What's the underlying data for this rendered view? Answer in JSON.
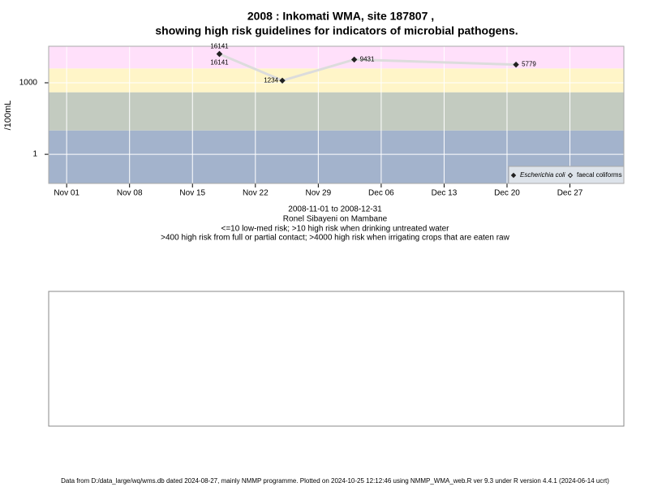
{
  "chart_data": {
    "type": "line",
    "title": "2008 : Inkomati WMA, site 187807 ,",
    "subtitle": "showing high risk guidelines for indicators of microbial pathogens.",
    "ylabel": "/100mL",
    "log_y": true,
    "grid": true,
    "legend": "bottom-right",
    "xlim": [
      "2008-10-30",
      "2009-01-02"
    ],
    "xticks": [
      {
        "value": "2008-11-01",
        "label": "Nov 01"
      },
      {
        "value": "2008-11-08",
        "label": "Nov 08"
      },
      {
        "value": "2008-11-15",
        "label": "Nov 15"
      },
      {
        "value": "2008-11-22",
        "label": "Nov 22"
      },
      {
        "value": "2008-11-29",
        "label": "Nov 29"
      },
      {
        "value": "2008-12-06",
        "label": "Dec 06"
      },
      {
        "value": "2008-12-13",
        "label": "Dec 13"
      },
      {
        "value": "2008-12-20",
        "label": "Dec 20"
      },
      {
        "value": "2008-12-27",
        "label": "Dec 27"
      }
    ],
    "ylim": [
      0.06,
      34000
    ],
    "yticks": [
      1,
      1000
    ],
    "bands": [
      {
        "upper": 10,
        "color": "#a3b3cc"
      },
      {
        "upper": 400,
        "color": "#c3cbc0"
      },
      {
        "upper": 4000,
        "color": "#fff5c8"
      },
      {
        "color": "#ffe0fa"
      }
    ],
    "series": [
      {
        "name": "Escherichia coli",
        "color": "#222222",
        "line_color": "#dcdcdc",
        "x": [
          "2008-11-18",
          "2008-11-25",
          "2008-12-03",
          "2008-12-21"
        ],
        "values": [
          16141,
          1234,
          9431,
          5779
        ]
      },
      {
        "name": "faecal coliforms",
        "color": "#222222",
        "x": [
          "2008-11-18"
        ],
        "values": [
          16141
        ]
      }
    ],
    "notes": [
      "2008-11-01 to 2008-12-31",
      "Ronel Sibayeni on Mambane",
      "<=10 low-med risk; >10 high risk when drinking untreated water",
      ">400 high risk from full or partial contact; >4000 high risk when irrigating crops that are eaten raw"
    ],
    "footer": "Data from D:/data_large/wq/wms.db dated 2024-08-27, mainly NMMP programme. Plotted on 2024-10-25 12:12:46 using NMMP_WMA_web.R ver 9.3 under R version 4.4.1 (2024-06-14 ucrt)"
  }
}
